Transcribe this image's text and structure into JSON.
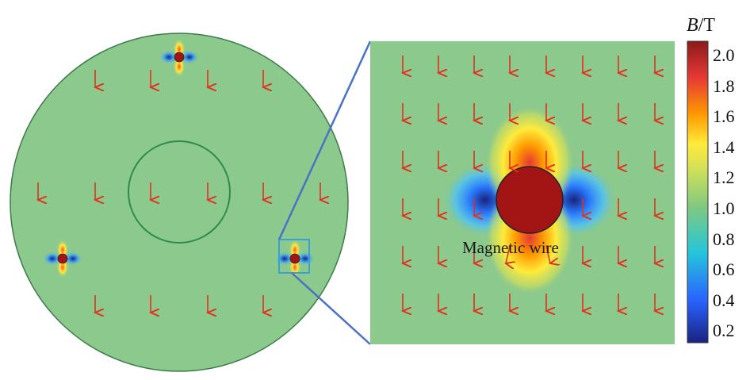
{
  "colorbar": {
    "quantity_symbol": "B",
    "unit": "/T",
    "ticks": [
      "2.0",
      "1.8",
      "1.6",
      "1.4",
      "1.2",
      "1.0",
      "0.8",
      "0.6",
      "0.4",
      "0.2"
    ],
    "colors": [
      "#1a237e",
      "#2962ff",
      "#26c6da",
      "#7fc97f",
      "#d4e157",
      "#ffeb3b",
      "#ff9800",
      "#e53935",
      "#8b1a1a"
    ]
  },
  "zoom_panel": {
    "annotation": "Magnetic wire"
  },
  "colors": {
    "field_background": "#8cc98c",
    "arrow": "#e0321e",
    "wire": "#a31515",
    "connector": "#4a72c4",
    "zoom_box": "#3aa0d8",
    "inner_ring": "#2e8b4e"
  }
}
